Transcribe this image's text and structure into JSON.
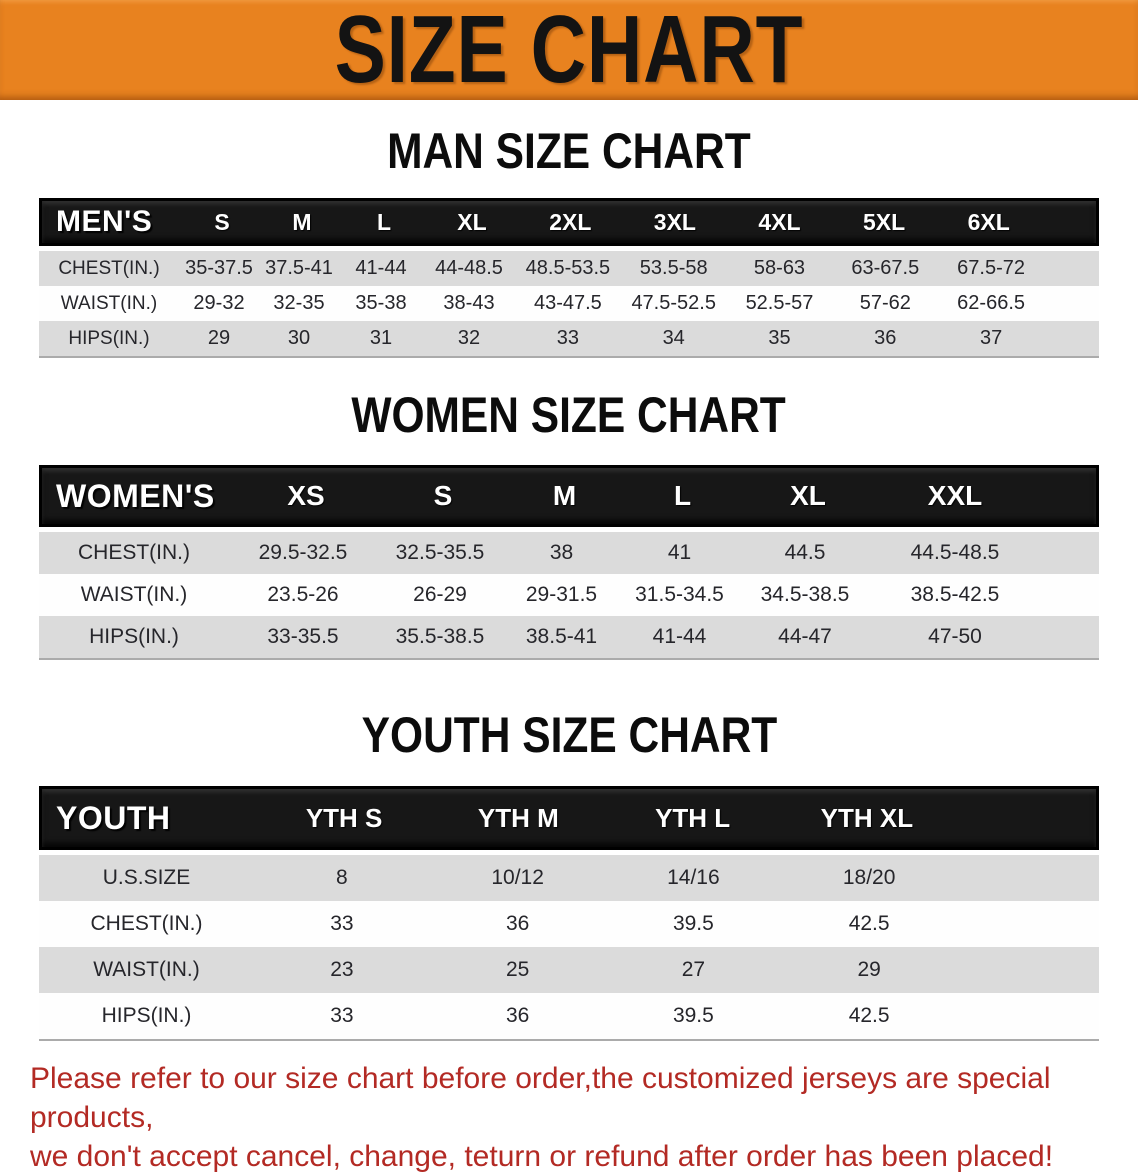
{
  "banner": {
    "title": "SIZE CHART"
  },
  "colors": {
    "banner_bg": "#E8821F",
    "table_header_bg": "#171717",
    "row_alt_bg": "#DBDBDB",
    "footer_text": "#B32A24",
    "title_text": "#0C0C0C"
  },
  "chart_data": [
    {
      "type": "table",
      "title": "MAN SIZE CHART",
      "corner_label": "MEN'S",
      "columns": [
        "S",
        "M",
        "L",
        "XL",
        "2XL",
        "3XL",
        "4XL",
        "5XL",
        "6XL"
      ],
      "rows": [
        {
          "label": "CHEST(IN.)",
          "values": [
            "35-37.5",
            "37.5-41",
            "41-44",
            "44-48.5",
            "48.5-53.5",
            "53.5-58",
            "58-63",
            "63-67.5",
            "67.5-72"
          ]
        },
        {
          "label": "WAIST(IN.)",
          "values": [
            "29-32",
            "32-35",
            "35-38",
            "38-43",
            "43-47.5",
            "47.5-52.5",
            "52.5-57",
            "57-62",
            "62-66.5"
          ]
        },
        {
          "label": "HIPS(IN.)",
          "values": [
            "29",
            "30",
            "31",
            "32",
            "33",
            "34",
            "35",
            "36",
            "37"
          ]
        }
      ]
    },
    {
      "type": "table",
      "title": "WOMEN SIZE CHART",
      "corner_label": "WOMEN'S",
      "columns": [
        "XS",
        "S",
        "M",
        "L",
        "XL",
        "XXL"
      ],
      "rows": [
        {
          "label": "CHEST(IN.)",
          "values": [
            "29.5-32.5",
            "32.5-35.5",
            "38",
            "41",
            "44.5",
            "44.5-48.5"
          ]
        },
        {
          "label": "WAIST(IN.)",
          "values": [
            "23.5-26",
            "26-29",
            "29-31.5",
            "31.5-34.5",
            "34.5-38.5",
            "38.5-42.5"
          ]
        },
        {
          "label": "HIPS(IN.)",
          "values": [
            "33-35.5",
            "35.5-38.5",
            "38.5-41",
            "41-44",
            "44-47",
            "47-50"
          ]
        }
      ]
    },
    {
      "type": "table",
      "title": "YOUTH SIZE CHART",
      "corner_label": "YOUTH",
      "columns": [
        "YTH S",
        "YTH M",
        "YTH L",
        "YTH XL"
      ],
      "rows": [
        {
          "label": "U.S.SIZE",
          "values": [
            "8",
            "10/12",
            "14/16",
            "18/20"
          ]
        },
        {
          "label": "CHEST(IN.)",
          "values": [
            "33",
            "36",
            "39.5",
            "42.5"
          ]
        },
        {
          "label": "WAIST(IN.)",
          "values": [
            "23",
            "25",
            "27",
            "29"
          ]
        },
        {
          "label": "HIPS(IN.)",
          "values": [
            "33",
            "36",
            "39.5",
            "42.5"
          ]
        }
      ]
    }
  ],
  "footer": {
    "line1": "Please refer to our size chart before order,the customized jerseys are special products,",
    "line2": "we don't accept cancel, change, teturn or refund after order has been placed!"
  }
}
